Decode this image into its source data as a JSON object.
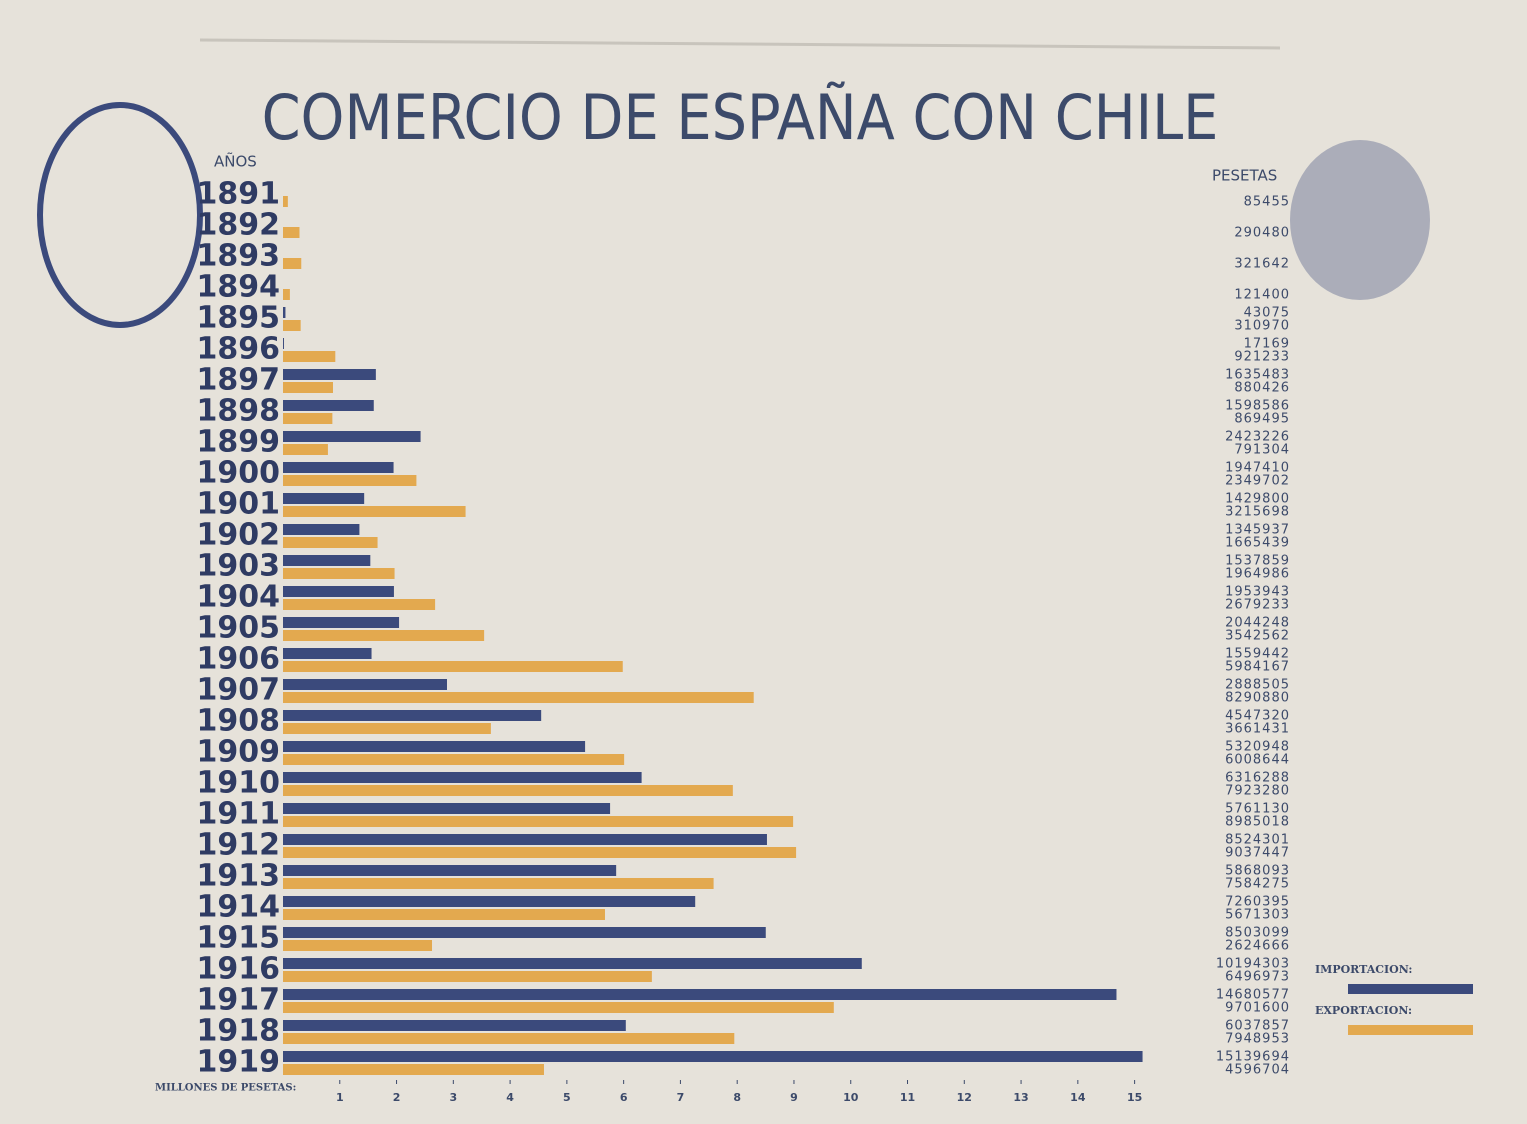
{
  "chart_data": {
    "type": "hbar",
    "title": "COMERCIO DE ESPAÑA CON CHILE",
    "category_label": "AÑOS",
    "value_label_header": "PESETAS",
    "x_label": "MILLONES DE PESETAS:",
    "categories": [
      "1891",
      "1892",
      "1893",
      "1894",
      "1895",
      "1896",
      "1897",
      "1898",
      "1899",
      "1900",
      "1901",
      "1902",
      "1903",
      "1904",
      "1905",
      "1906",
      "1907",
      "1908",
      "1909",
      "1910",
      "1911",
      "1912",
      "1913",
      "1914",
      "1915",
      "1916",
      "1917",
      "1918",
      "1919"
    ],
    "series": [
      {
        "name": "IMPORTACION:",
        "color": "#3b4a7c",
        "values": [
          null,
          null,
          null,
          null,
          0.043075,
          0.017169,
          1.635483,
          1.598586,
          2.423226,
          1.94741,
          1.4298,
          1.345937,
          1.537859,
          1.953943,
          2.044248,
          1.559442,
          2.888505,
          4.54732,
          5.320948,
          6.316288,
          5.76113,
          8.524301,
          5.868093,
          7.260395,
          8.503099,
          10.194303,
          14.680577,
          6.037857,
          15.139694
        ],
        "value_labels": [
          null,
          null,
          null,
          null,
          "43075",
          "17169",
          "1635483",
          "1598586",
          "2423226",
          "1947410",
          "1429800",
          "1345937",
          "1537859",
          "1953943",
          "2044248",
          "1559442",
          "2888505",
          "4547320",
          "5320948",
          "6316288",
          "5761130",
          "8524301",
          "5868093",
          "7260395",
          "8503099",
          "10194303",
          "14680577",
          "6037857",
          "15139694"
        ]
      },
      {
        "name": "EXPORTACION:",
        "color": "#e3a94f",
        "values": [
          0.085455,
          0.29048,
          0.321642,
          0.1214,
          0.31097,
          0.921233,
          0.880426,
          0.869495,
          0.791304,
          2.349702,
          3.215698,
          1.665439,
          1.964986,
          2.679233,
          3.542562,
          5.984167,
          8.29088,
          3.661431,
          6.008644,
          7.92328,
          8.985018,
          9.037447,
          7.584275,
          5.671303,
          2.624666,
          6.496973,
          9.7016,
          7.948953,
          4.596704
        ],
        "value_labels": [
          "85455",
          "290480",
          "321642",
          "121400",
          "310970",
          "921233",
          "880426",
          "869495",
          "791304",
          "2349702",
          "3215698",
          "1665439",
          "1964986",
          "2679233",
          "3542562",
          "5984167",
          "8290880",
          "3661431",
          "6008644",
          "7923280",
          "8985018",
          "9037447",
          "7584275",
          "5671303",
          "2624666",
          "6496973",
          "9701600",
          "7948953",
          "4596704"
        ]
      }
    ],
    "xlim": [
      0,
      15.5
    ],
    "xticks": [
      1,
      2,
      3,
      4,
      5,
      6,
      7,
      8,
      9,
      10,
      11,
      12,
      13,
      14,
      15
    ]
  }
}
